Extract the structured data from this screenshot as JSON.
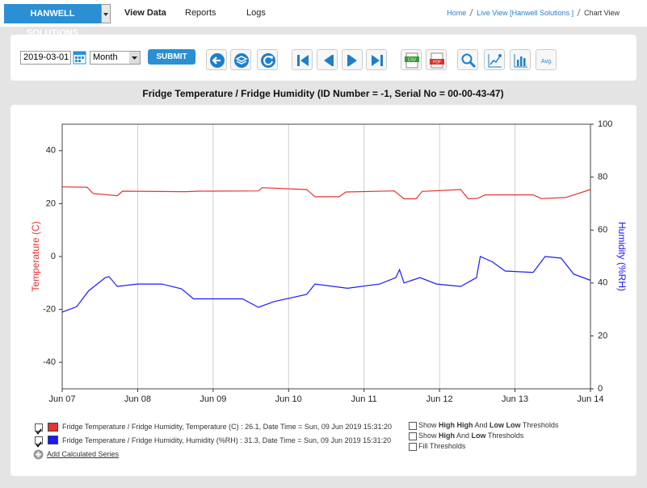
{
  "header": {
    "brand": "HANWELL SOLUTIONS",
    "nav": [
      "View Data",
      "Reports",
      "Logs"
    ],
    "breadcrumb": [
      "Home",
      "Live View [Hanwell Solutions ]",
      "Chart View"
    ]
  },
  "toolbar": {
    "date": "2019-03-01",
    "period": "Month",
    "submit": "SUBMIT",
    "csv": "CSV",
    "pdf": "PDF",
    "avg": "Avg."
  },
  "chart_data": {
    "type": "line",
    "title": "Fridge Temperature / Fridge Humidity (ID Number = -1, Serial No = 00-00-43-47)",
    "ylabel": "Temperature (C)",
    "y2label": "Humidity (%RH)",
    "xlim": [
      7,
      14
    ],
    "xticks": [
      {
        "value": 7,
        "label": "Jun 07"
      },
      {
        "value": 8,
        "label": "Jun 08"
      },
      {
        "value": 9,
        "label": "Jun 09"
      },
      {
        "value": 10,
        "label": "Jun 10"
      },
      {
        "value": 11,
        "label": "Jun 11"
      },
      {
        "value": 12,
        "label": "Jun 12"
      },
      {
        "value": 13,
        "label": "Jun 13"
      },
      {
        "value": 14,
        "label": "Jun 14"
      }
    ],
    "ylim": [
      -50,
      50
    ],
    "yticks": [
      -40,
      -20,
      0,
      20,
      40
    ],
    "y2lim": [
      0,
      100
    ],
    "y2ticks": [
      0,
      20,
      40,
      60,
      80,
      100
    ],
    "grid": true,
    "series": [
      {
        "name": "Fridge Temperature / Fridge Humidity, Temperature (C) : 26.1, Date Time = Sun, 09 Jun 2019 15:31:20",
        "color": "#e53333",
        "x": [
          7.0,
          7.33,
          7.41,
          7.73,
          7.8,
          8.64,
          8.8,
          9.6,
          9.65,
          10.24,
          10.35,
          10.67,
          10.76,
          11.4,
          11.53,
          11.69,
          11.77,
          12.28,
          12.38,
          12.51,
          12.6,
          13.24,
          13.35,
          13.67,
          14.0
        ],
        "values": [
          26.3,
          26.2,
          23.8,
          23.0,
          24.7,
          24.5,
          24.7,
          24.8,
          26.0,
          25.3,
          22.6,
          22.6,
          24.4,
          24.8,
          21.8,
          21.8,
          24.6,
          25.3,
          21.8,
          22.0,
          23.3,
          23.3,
          21.9,
          22.3,
          25.3
        ]
      },
      {
        "name": "Fridge Temperature / Fridge Humidity, Humidity (%RH) : 31.3, Date Time = Sun, 09 Jun 2019 15:31:20",
        "color": "#1a1aff",
        "axis": "y2",
        "x": [
          7.0,
          7.19,
          7.35,
          7.57,
          7.62,
          7.73,
          8.0,
          8.32,
          8.58,
          8.74,
          9.39,
          9.6,
          9.81,
          10.24,
          10.35,
          10.78,
          11.21,
          11.42,
          11.47,
          11.53,
          11.74,
          11.96,
          12.28,
          12.49,
          12.54,
          12.7,
          12.87,
          13.24,
          13.4,
          13.61,
          13.78,
          14.0
        ],
        "values": [
          29.0,
          31.0,
          37.0,
          42.0,
          42.4,
          38.7,
          39.6,
          39.6,
          37.8,
          34.0,
          34.0,
          30.8,
          33.0,
          35.7,
          39.6,
          38.0,
          39.6,
          42.0,
          45.0,
          40.0,
          42.0,
          39.6,
          38.7,
          42.0,
          50.0,
          48.0,
          44.5,
          44.0,
          50.0,
          49.4,
          43.3,
          41.0
        ]
      }
    ]
  },
  "options": {
    "add_series": "Add Calculated Series",
    "thresholds": [
      [
        "Show ",
        "High High",
        " And ",
        "Low Low",
        " Thresholds"
      ],
      [
        "Show ",
        "High",
        " And ",
        "Low",
        " Thresholds"
      ],
      [
        "Fill Thresholds"
      ]
    ]
  }
}
